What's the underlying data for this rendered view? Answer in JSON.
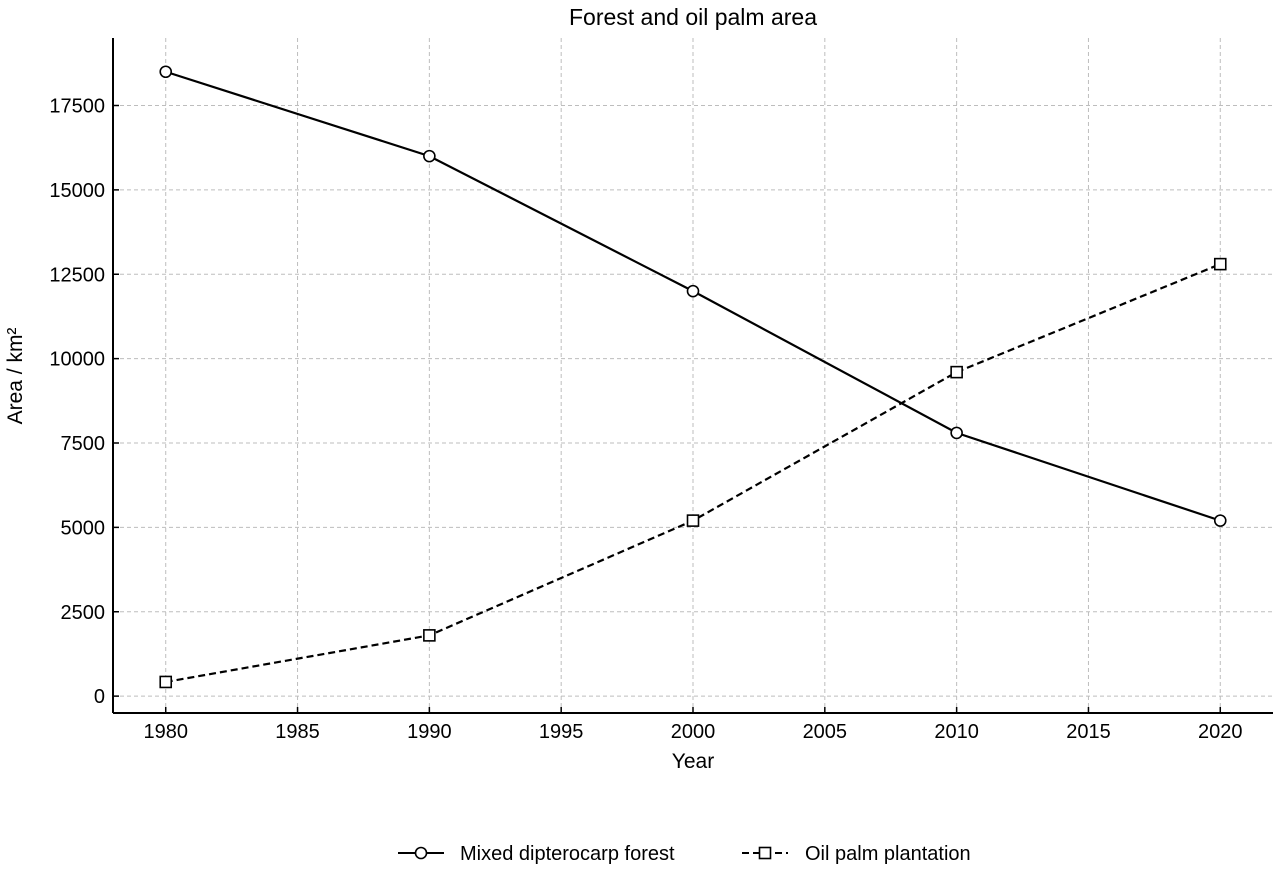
{
  "chart_data": {
    "type": "line",
    "title": "Forest and oil palm area",
    "xlabel": "Year",
    "ylabel": "Area / km²",
    "xlim": [
      1978,
      2022
    ],
    "ylim": [
      -500,
      19500
    ],
    "xticks": [
      1980,
      1985,
      1990,
      1995,
      2000,
      2005,
      2010,
      2015,
      2020
    ],
    "yticks": [
      0,
      2500,
      5000,
      7500,
      10000,
      12500,
      15000,
      17500
    ],
    "grid": true,
    "legend_position": "bottom-center",
    "x": [
      1980,
      1990,
      2000,
      2010,
      2020
    ],
    "series": [
      {
        "name": "Mixed dipterocarp forest",
        "values": [
          18500,
          16000,
          12000,
          7800,
          5200
        ],
        "line_style": "solid",
        "marker": "circle",
        "color": "#000000"
      },
      {
        "name": "Oil palm plantation",
        "values": [
          420,
          1800,
          5200,
          9600,
          12800
        ],
        "line_style": "dashed",
        "marker": "square",
        "color": "#000000"
      }
    ]
  }
}
